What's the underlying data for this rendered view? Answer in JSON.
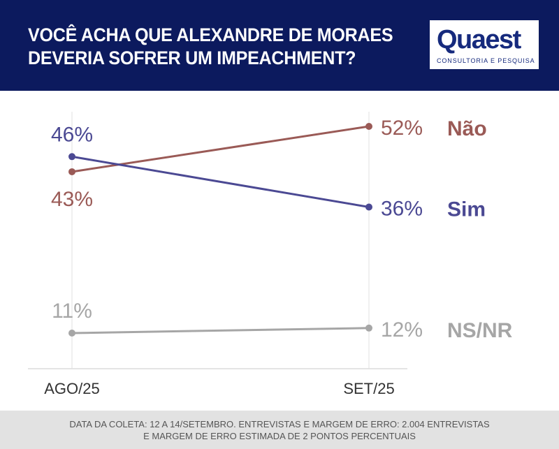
{
  "header": {
    "title_line1": "VOCÊ ACHA QUE ALEXANDRE DE MORAES",
    "title_line2": "DEVERIA SOFRER UM IMPEACHMENT?"
  },
  "logo": {
    "name": "Quaest",
    "subtitle": "CONSULTORIA E PESQUISA"
  },
  "colors": {
    "header_bg": "#0c1a5e",
    "nao": "#9a5a56",
    "sim": "#4b4993",
    "nsnr": "#a6a6a6",
    "footer_bg": "#e2e2e2"
  },
  "chart_data": {
    "type": "line",
    "categories": [
      "AGO/25",
      "SET/25"
    ],
    "series": [
      {
        "name": "Não",
        "values": [
          43,
          52
        ],
        "labels": [
          "43%",
          "52%"
        ]
      },
      {
        "name": "Sim",
        "values": [
          46,
          36
        ],
        "labels": [
          "46%",
          "36%"
        ]
      },
      {
        "name": "NS/NR",
        "values": [
          11,
          12
        ],
        "labels": [
          "11%",
          "12%"
        ]
      }
    ],
    "grid": false,
    "legend": "right"
  },
  "footer": {
    "line1": "DATA DA COLETA: 12 A 14/SETEMBRO. ENTREVISTAS E MARGEM DE ERRO: 2.004 ENTREVISTAS",
    "line2": "E MARGEM DE ERRO ESTIMADA DE 2 PONTOS PERCENTUAIS"
  }
}
